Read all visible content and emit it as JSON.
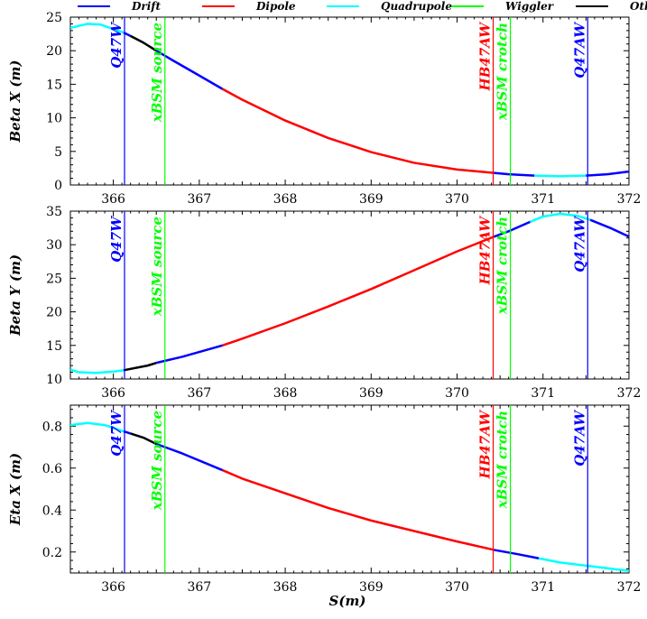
{
  "colors": {
    "drift": "#0000ff",
    "dipole": "#ff0000",
    "quadrupole": "#00ffff",
    "wiggler": "#00ff00",
    "other": "#000000",
    "marker_quad": "#0000ff",
    "marker_bend": "#ff0000",
    "marker_source": "#00ff00"
  },
  "legend": [
    {
      "key": "drift",
      "label": "Drift"
    },
    {
      "key": "dipole",
      "label": "Dipole"
    },
    {
      "key": "quadrupole",
      "label": "Quadrupole"
    },
    {
      "key": "wiggler",
      "label": "Wiggler"
    },
    {
      "key": "other",
      "label": "Other"
    }
  ],
  "xlabel": "S(m)",
  "chart_data": [
    {
      "type": "line",
      "ylabel": "Beta X (m)",
      "xlim": [
        365.5,
        372
      ],
      "ylim": [
        0,
        25
      ],
      "xticks": [
        366,
        367,
        368,
        369,
        370,
        371,
        372
      ],
      "yticks": [
        0,
        5,
        10,
        15,
        20,
        25
      ],
      "segments": [
        {
          "type": "quadrupole",
          "x": [
            365.5,
            365.7,
            365.85,
            366.05,
            366.12
          ],
          "y": [
            23.4,
            24.0,
            23.9,
            23.0,
            22.7
          ]
        },
        {
          "type": "drift",
          "x": [
            366.12,
            366.2
          ],
          "y": [
            22.7,
            22.2
          ]
        },
        {
          "type": "other",
          "x": [
            366.2,
            366.35,
            366.5
          ],
          "y": [
            22.2,
            21.2,
            20.0
          ]
        },
        {
          "type": "drift",
          "x": [
            366.5,
            366.7,
            367.0,
            367.27
          ],
          "y": [
            20.0,
            18.5,
            16.3,
            14.3
          ]
        },
        {
          "type": "dipole",
          "x": [
            367.27,
            367.5,
            368.0,
            368.5,
            369.0,
            369.5,
            370.0,
            370.43
          ],
          "y": [
            14.3,
            12.7,
            9.6,
            7.0,
            4.9,
            3.3,
            2.3,
            1.8
          ]
        },
        {
          "type": "drift",
          "x": [
            370.43,
            370.6,
            370.9
          ],
          "y": [
            1.8,
            1.6,
            1.4
          ]
        },
        {
          "type": "quadrupole",
          "x": [
            370.9,
            371.2,
            371.5
          ],
          "y": [
            1.4,
            1.3,
            1.4
          ]
        },
        {
          "type": "drift",
          "x": [
            371.5,
            371.75,
            372.0
          ],
          "y": [
            1.4,
            1.6,
            2.0
          ]
        }
      ],
      "markers": [
        {
          "x": 366.13,
          "label": "Q47W",
          "color": "marker_quad"
        },
        {
          "x": 366.6,
          "label": "xBSM source",
          "color": "marker_source"
        },
        {
          "x": 370.42,
          "label": "HB47AW",
          "color": "marker_bend"
        },
        {
          "x": 370.62,
          "label": "xBSM crotch",
          "color": "marker_source"
        },
        {
          "x": 371.52,
          "label": "Q47AW",
          "color": "marker_quad"
        }
      ]
    },
    {
      "type": "line",
      "ylabel": "Beta Y (m)",
      "xlim": [
        365.5,
        372
      ],
      "ylim": [
        10,
        35
      ],
      "xticks": [
        366,
        367,
        368,
        369,
        370,
        371,
        372
      ],
      "yticks": [
        10,
        15,
        20,
        25,
        30,
        35
      ],
      "segments": [
        {
          "type": "quadrupole",
          "x": [
            365.5,
            365.6,
            365.8,
            366.0,
            366.12
          ],
          "y": [
            11.4,
            11.0,
            10.9,
            11.1,
            11.3
          ]
        },
        {
          "type": "other",
          "x": [
            366.12,
            366.4,
            366.5
          ],
          "y": [
            11.3,
            12.0,
            12.4
          ]
        },
        {
          "type": "drift",
          "x": [
            366.5,
            366.8,
            367.27
          ],
          "y": [
            12.4,
            13.3,
            15.0
          ]
        },
        {
          "type": "dipole",
          "x": [
            367.27,
            367.5,
            368.0,
            368.5,
            369.0,
            369.5,
            370.0,
            370.43
          ],
          "y": [
            15.0,
            16.0,
            18.3,
            20.8,
            23.4,
            26.2,
            29.0,
            31.2
          ]
        },
        {
          "type": "drift",
          "x": [
            370.43,
            370.6,
            370.85
          ],
          "y": [
            31.2,
            32.0,
            33.4
          ]
        },
        {
          "type": "quadrupole",
          "x": [
            370.85,
            371.0,
            371.2,
            371.4,
            371.55
          ],
          "y": [
            33.4,
            34.2,
            34.6,
            34.3,
            33.7
          ]
        },
        {
          "type": "drift",
          "x": [
            371.55,
            371.8,
            372.0
          ],
          "y": [
            33.7,
            32.4,
            31.2
          ]
        }
      ],
      "markers": [
        {
          "x": 366.13,
          "label": "Q47W",
          "color": "marker_quad"
        },
        {
          "x": 366.6,
          "label": "xBSM source",
          "color": "marker_source"
        },
        {
          "x": 370.42,
          "label": "HB47AW",
          "color": "marker_bend"
        },
        {
          "x": 370.62,
          "label": "xBSM crotch",
          "color": "marker_source"
        },
        {
          "x": 371.52,
          "label": "Q47AW",
          "color": "marker_quad"
        }
      ]
    },
    {
      "type": "line",
      "ylabel": "Eta X (m)",
      "xlim": [
        365.5,
        372
      ],
      "ylim": [
        0.1,
        0.9
      ],
      "xticks": [
        366,
        367,
        368,
        369,
        370,
        371,
        372
      ],
      "yticks": [
        0.2,
        0.4,
        0.6,
        0.8
      ],
      "segments": [
        {
          "type": "quadrupole",
          "x": [
            365.5,
            365.7,
            365.9,
            366.12
          ],
          "y": [
            0.805,
            0.815,
            0.805,
            0.775
          ]
        },
        {
          "type": "drift",
          "x": [
            366.12,
            366.2
          ],
          "y": [
            0.775,
            0.765
          ]
        },
        {
          "type": "other",
          "x": [
            366.2,
            366.35,
            366.5
          ],
          "y": [
            0.765,
            0.745,
            0.715
          ]
        },
        {
          "type": "drift",
          "x": [
            366.5,
            366.8,
            367.27
          ],
          "y": [
            0.715,
            0.67,
            0.59
          ]
        },
        {
          "type": "dipole",
          "x": [
            367.27,
            367.5,
            368.0,
            368.5,
            369.0,
            369.5,
            370.0,
            370.43
          ],
          "y": [
            0.59,
            0.55,
            0.48,
            0.41,
            0.35,
            0.3,
            0.25,
            0.21
          ]
        },
        {
          "type": "drift",
          "x": [
            370.43,
            370.7,
            370.95
          ],
          "y": [
            0.21,
            0.19,
            0.17
          ]
        },
        {
          "type": "quadrupole",
          "x": [
            370.95,
            371.2,
            371.5,
            371.8,
            372.0
          ],
          "y": [
            0.17,
            0.15,
            0.135,
            0.12,
            0.11
          ]
        }
      ],
      "markers": [
        {
          "x": 366.13,
          "label": "Q47W",
          "color": "marker_quad"
        },
        {
          "x": 366.6,
          "label": "xBSM source",
          "color": "marker_source"
        },
        {
          "x": 370.42,
          "label": "HB47AW",
          "color": "marker_bend"
        },
        {
          "x": 370.62,
          "label": "xBSM crotch",
          "color": "marker_source"
        },
        {
          "x": 371.52,
          "label": "Q47AW",
          "color": "marker_quad"
        }
      ]
    }
  ]
}
